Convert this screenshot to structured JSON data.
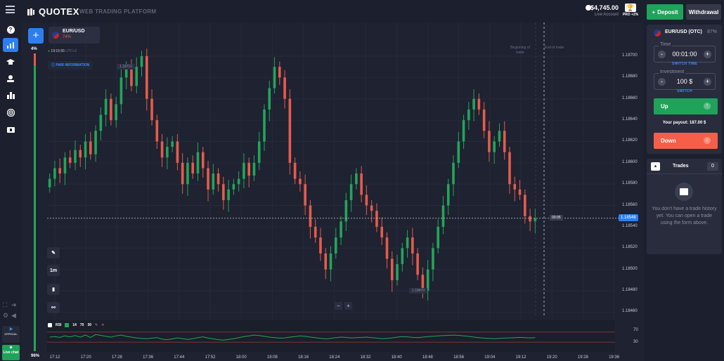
{
  "app": {
    "logo": "QUOTEX",
    "subtitle": "WEB TRADING PLATFORM"
  },
  "header": {
    "balance": "$4,745.00",
    "account_type": "Live Account",
    "pro_label": "PRO +2%",
    "deposit_label": "Deposit",
    "withdrawal_label": "Withdrawal"
  },
  "sidebar": {
    "items": [
      "help-icon",
      "chart-icon",
      "education-icon",
      "profile-icon",
      "leaderboard-icon",
      "signal-icon",
      "bonus-icon"
    ],
    "bottom": {
      "telegram_label": "OFFICIAL",
      "livechat_label": "Live chat"
    }
  },
  "chart": {
    "pair": "EUR/USD",
    "payout": "74%",
    "time": "19:15:55",
    "timezone": "UTC+2",
    "pair_info_label": "PAIR INFORMATION",
    "sentiment_top": "4%",
    "sentiment_bottom": "96%",
    "sentiment_up_fraction": 0.96,
    "current_price": "1.18548",
    "countdown": "00:05",
    "high_marker": "1.18713",
    "low_marker": "1.18470",
    "beginning_label": "Beginning of trade",
    "end_label": "End of trade",
    "timeframe_label": "1m",
    "y_ticks": [
      "1.18700",
      "1.18680",
      "1.18660",
      "1.18640",
      "1.18620",
      "1.18600",
      "1.18580",
      "1.18560",
      "1.18540",
      "1.18520",
      "1.18500",
      "1.18480",
      "1.18460"
    ],
    "x_ticks": [
      "17:12",
      "17:20",
      "17:28",
      "17:36",
      "17:44",
      "17:52",
      "18:00",
      "18:08",
      "18:16",
      "18:24",
      "18:32",
      "18:40",
      "18:48",
      "18:56",
      "19:04",
      "19:12",
      "19:20",
      "19:28",
      "19:36"
    ],
    "zoom_minus": "−",
    "zoom_plus": "+",
    "indicator": {
      "name": "RSI",
      "period": "14",
      "upper": "70",
      "lower": "30",
      "axis_upper": "70",
      "axis_lower": "30"
    },
    "colors": {
      "up": "#23a55a",
      "down": "#e65b4c",
      "bg": "#1e2231",
      "accent": "#2d7ff0"
    }
  },
  "chart_data": {
    "type": "candlestick",
    "ylim": [
      1.18455,
      1.18725
    ],
    "y_ticks": [
      1.187,
      1.1868,
      1.1866,
      1.1864,
      1.1862,
      1.186,
      1.1858,
      1.1856,
      1.1854,
      1.1852,
      1.185,
      1.1848,
      1.1846
    ],
    "x_ticks": [
      "17:12",
      "17:20",
      "17:28",
      "17:36",
      "17:44",
      "17:52",
      "18:00",
      "18:08",
      "18:16",
      "18:24",
      "18:32",
      "18:40",
      "18:48",
      "18:56",
      "19:04",
      "19:12",
      "19:20",
      "19:28",
      "19:36"
    ],
    "closes": [
      1.18585,
      1.18595,
      1.1859,
      1.18605,
      1.186,
      1.18612,
      1.18605,
      1.1862,
      1.18608,
      1.1863,
      1.18645,
      1.1866,
      1.1864,
      1.18655,
      1.1868,
      1.1869,
      1.18672,
      1.1869,
      1.187,
      1.1866,
      1.1864,
      1.1862,
      1.18605,
      1.18615,
      1.1862,
      1.186,
      1.1858,
      1.186,
      1.1859,
      1.1861,
      1.18595,
      1.18575,
      1.1859,
      1.1858,
      1.18565,
      1.18575,
      1.1858,
      1.18585,
      1.186,
      1.18588,
      1.186,
      1.1862,
      1.1865,
      1.1867,
      1.1869,
      1.1868,
      1.1866,
      1.186,
      1.18585,
      1.1858,
      1.1856,
      1.1854,
      1.1853,
      1.18515,
      1.185,
      1.18515,
      1.1853,
      1.18545,
      1.18565,
      1.1858,
      1.1859,
      1.1857,
      1.1856,
      1.18555,
      1.1854,
      1.1853,
      1.1851,
      1.1849,
      1.18505,
      1.1852,
      1.1853,
      1.18515,
      1.18495,
      1.1848,
      1.185,
      1.1852,
      1.1854,
      1.1856,
      1.1858,
      1.186,
      1.1862,
      1.1864,
      1.1865,
      1.1866,
      1.1865,
      1.1863,
      1.1861,
      1.1862,
      1.1863,
      1.1861,
      1.1858,
      1.18575,
      1.1857,
      1.1855,
      1.18545,
      1.18548
    ],
    "rsi": [
      50,
      52,
      49,
      55,
      51,
      56,
      50,
      58,
      49,
      60,
      57,
      53,
      50,
      55,
      58,
      53,
      50,
      47,
      45,
      44,
      46,
      48,
      42,
      40,
      43,
      47,
      44,
      41,
      44,
      48,
      51,
      46,
      43,
      40,
      38,
      41,
      44,
      48,
      52,
      55,
      58,
      56,
      53,
      50,
      48,
      46,
      47,
      50,
      52,
      55,
      53,
      50,
      48,
      45,
      43,
      45,
      48,
      50,
      49,
      47,
      48,
      49,
      50,
      48,
      46,
      44,
      45,
      47,
      50,
      52,
      51,
      49,
      48,
      50,
      52,
      53,
      55,
      56,
      57,
      58,
      57,
      55,
      53,
      50,
      48,
      46,
      45,
      44,
      45,
      46,
      47,
      48,
      49,
      48,
      47,
      48
    ]
  },
  "right_panel": {
    "pair": "EUR/USD (OTC)",
    "payout": "87%",
    "time_label": "Time",
    "time_value": "00:01:00",
    "switch_time_label": "SWITCH TIME",
    "investment_label": "Investment",
    "investment_value": "100 $",
    "switch_label": "SWITCH",
    "up_label": "Up",
    "down_label": "Down",
    "payout_text": "Your payout: 187.00 $",
    "trades_label": "Trades",
    "trades_count": "0",
    "empty_text": "You don't have a trade history yet. You can open a trade using the form above."
  }
}
